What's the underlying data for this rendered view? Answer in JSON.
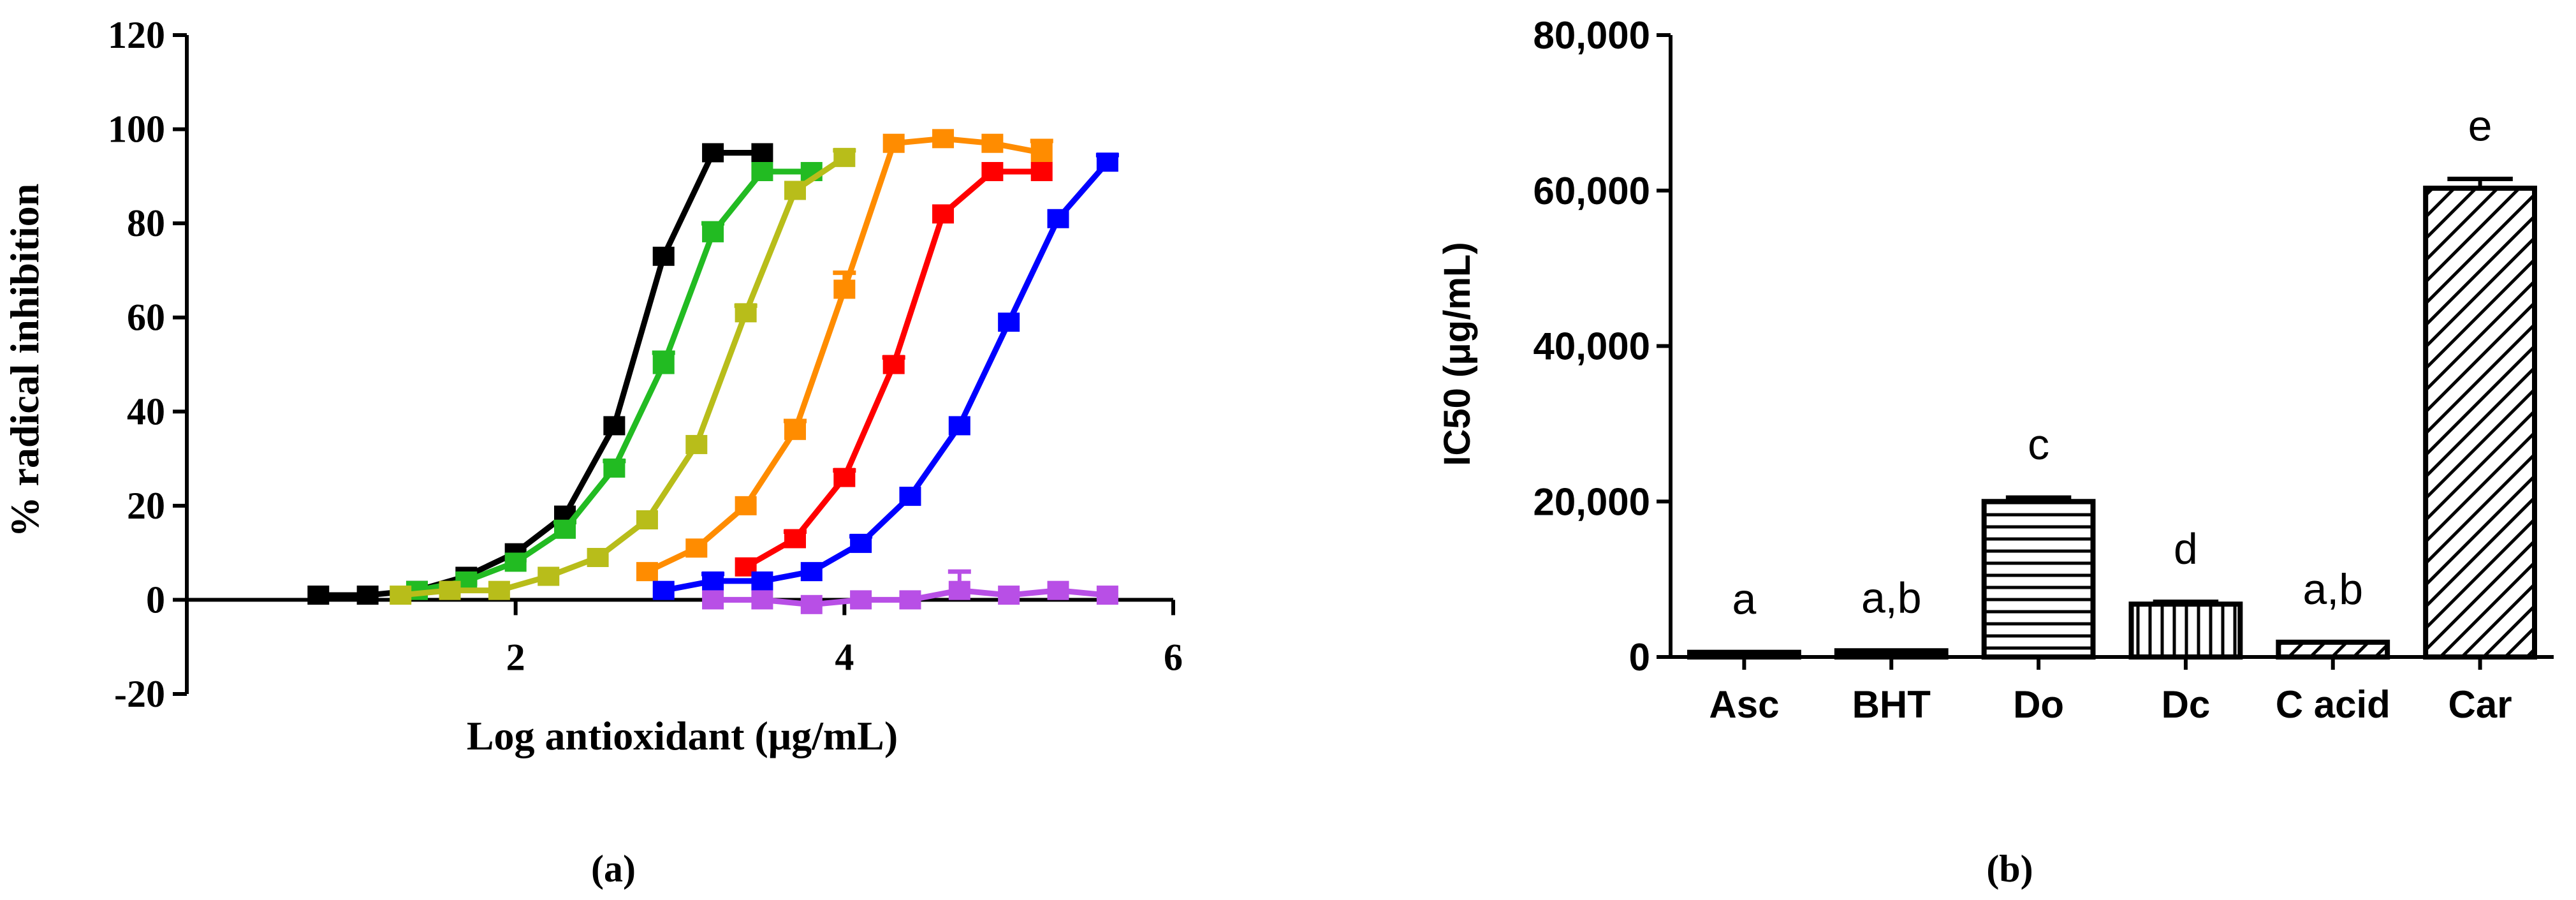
{
  "chart_data": [
    {
      "type": "line",
      "panel_label": "(a)",
      "xlabel": "Log antioxidant (μg/mL)",
      "ylabel": "% radical inhibition",
      "xlim": [
        0,
        6
      ],
      "ylim": [
        -20,
        120
      ],
      "xticks": [
        2,
        4,
        6
      ],
      "yticks": [
        -20,
        0,
        20,
        40,
        60,
        80,
        100,
        120
      ],
      "grid": false,
      "series": [
        {
          "name": "black",
          "color": "#000000",
          "x": [
            0.8,
            1.1,
            1.4,
            1.7,
            2.0,
            2.3,
            2.6,
            2.9,
            3.2,
            3.5
          ],
          "y": [
            1,
            1,
            2,
            5,
            10,
            18,
            37,
            73,
            95,
            95
          ],
          "err": [
            0,
            0,
            0,
            0,
            0,
            0,
            0,
            0,
            0,
            0
          ]
        },
        {
          "name": "green",
          "color": "#22bb22",
          "x": [
            1.4,
            1.7,
            2.0,
            2.3,
            2.6,
            2.9,
            3.2,
            3.5,
            3.8
          ],
          "y": [
            2,
            4,
            8,
            15,
            28,
            50,
            78,
            91,
            91
          ],
          "err": [
            0,
            0,
            0,
            1.5,
            1.5,
            2.5,
            2,
            0,
            0
          ]
        },
        {
          "name": "yellow-green",
          "color": "#b8bd1a",
          "x": [
            1.3,
            1.6,
            1.9,
            2.2,
            2.5,
            2.8,
            3.1,
            3.4,
            3.7,
            4.0
          ],
          "y": [
            1,
            2,
            2,
            5,
            9,
            17,
            33,
            61,
            87,
            94
          ],
          "err": [
            0,
            0,
            0,
            0,
            0,
            0,
            0,
            1.5,
            0,
            1.5
          ]
        },
        {
          "name": "orange",
          "color": "#ff8c00",
          "x": [
            2.8,
            3.1,
            3.4,
            3.7,
            4.0,
            4.3,
            4.6,
            4.9,
            5.2
          ],
          "y": [
            6,
            11,
            20,
            36,
            66,
            97,
            98,
            97,
            95
          ],
          "err": [
            0,
            0,
            0,
            2,
            3.5,
            0,
            0,
            0,
            2.5
          ]
        },
        {
          "name": "red",
          "color": "#ff0000",
          "x": [
            3.4,
            3.7,
            4.0,
            4.3,
            4.6,
            4.9,
            5.2
          ],
          "y": [
            7,
            13,
            26,
            50,
            82,
            91,
            91
          ],
          "err": [
            0,
            1.5,
            1.5,
            1.5,
            0,
            0,
            0
          ]
        },
        {
          "name": "blue",
          "color": "#0000ff",
          "x": [
            2.9,
            3.2,
            3.5,
            3.8,
            4.1,
            4.4,
            4.7,
            5.0,
            5.3,
            5.6
          ],
          "y": [
            2,
            4,
            4,
            6,
            12,
            22,
            37,
            59,
            81,
            93
          ],
          "err": [
            0,
            1.5,
            0,
            0,
            1.5,
            0,
            0,
            0,
            0,
            1.5
          ]
        },
        {
          "name": "purple",
          "color": "#b84fe6",
          "x": [
            3.2,
            3.5,
            3.8,
            4.1,
            4.4,
            4.7,
            5.0,
            5.3,
            5.6
          ],
          "y": [
            0,
            0,
            -1,
            0,
            0,
            2,
            1,
            2,
            1
          ],
          "err": [
            0,
            0,
            0,
            0,
            0,
            4,
            0,
            0,
            0
          ]
        }
      ]
    },
    {
      "type": "bar",
      "panel_label": "(b)",
      "ylabel": "IC50 (μg/mL)",
      "xlabel": "",
      "ylim": [
        0,
        80000
      ],
      "yticks": [
        0,
        20000,
        40000,
        60000,
        80000
      ],
      "ytick_labels": [
        "0",
        "20,000",
        "40,000",
        "60,000",
        "80,000"
      ],
      "categories": [
        "Asc",
        "BHT",
        "Do",
        "Dc",
        "C acid",
        "Car"
      ],
      "values": [
        600,
        800,
        20000,
        6800,
        1900,
        60300
      ],
      "errors": [
        0,
        0,
        500,
        300,
        0,
        1200
      ],
      "annotations": [
        "a",
        "a,b",
        "c",
        "d",
        "a,b",
        "e"
      ],
      "patterns": [
        "solid",
        "solid",
        "horizontal",
        "vertical",
        "diagonal",
        "diagonal"
      ],
      "grid": false
    }
  ]
}
